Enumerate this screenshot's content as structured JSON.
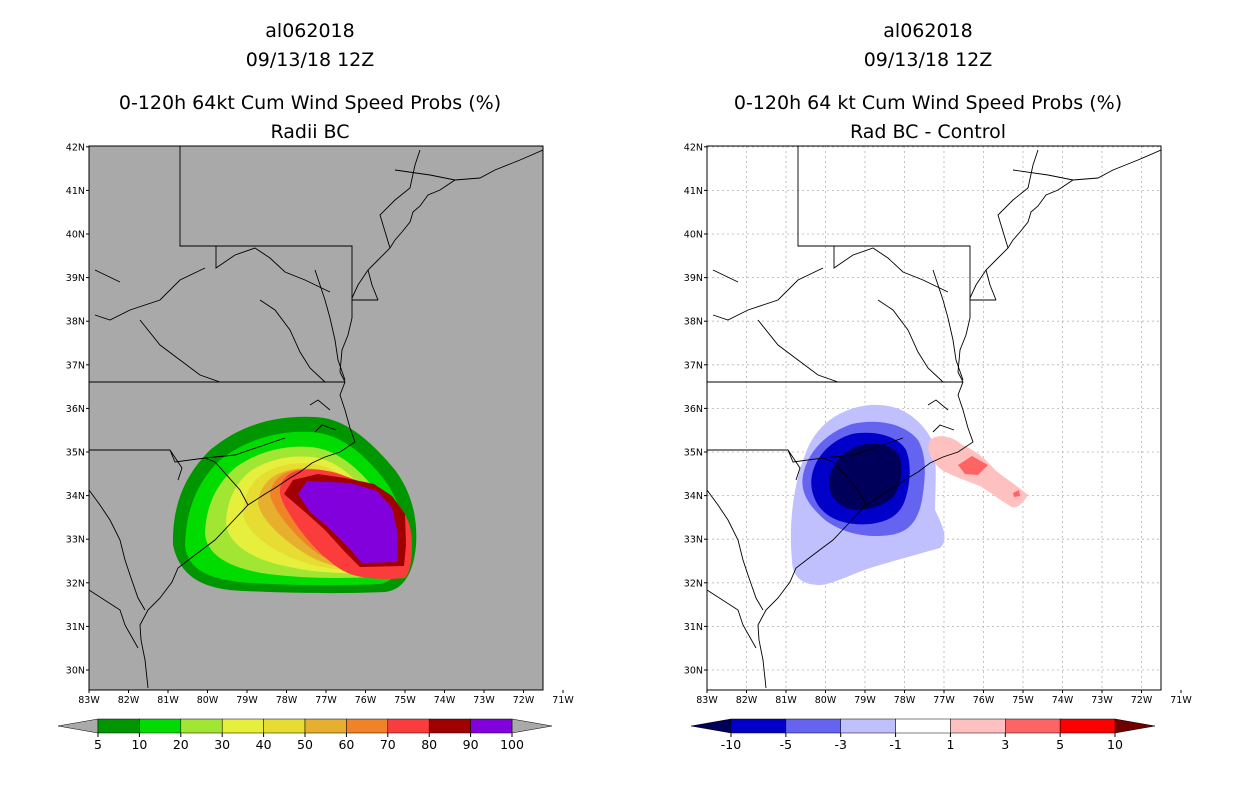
{
  "panels": [
    {
      "id": "left",
      "title1": "al062018",
      "title2": "09/13/18 12Z",
      "title3": "0-120h 64kt Cum Wind Speed Probs (%)",
      "title4": "Radii BC",
      "background": "#a9a9a9"
    },
    {
      "id": "right",
      "title1": "al062018",
      "title2": "09/13/18 12Z",
      "title3": "0-120h 64 kt Cum Wind Speed Probs (%)",
      "title4": "Rad BC - Control",
      "background": "#ffffff"
    }
  ],
  "axes": {
    "lat_labels": [
      "30N",
      "31N",
      "32N",
      "33N",
      "34N",
      "35N",
      "36N",
      "37N",
      "38N",
      "39N",
      "40N",
      "41N",
      "42N"
    ],
    "lon_labels": [
      "83W",
      "82W",
      "81W",
      "80W",
      "79W",
      "78W",
      "77W",
      "76W",
      "75W",
      "74W",
      "73W",
      "72W",
      "71W"
    ]
  },
  "colorbars": [
    {
      "id": "left",
      "colors": [
        "#009600",
        "#00dc00",
        "#a0e632",
        "#e6f03c",
        "#e6dc32",
        "#e6af2d",
        "#f08228",
        "#fa3c3c",
        "#a00000",
        "#8200dc"
      ],
      "labels": [
        "5",
        "10",
        "20",
        "30",
        "40",
        "50",
        "60",
        "70",
        "80",
        "90",
        "100"
      ],
      "under_color": "#a9a9a9",
      "over_color": "#a9a9a9"
    },
    {
      "id": "right",
      "colors": [
        "#0000c8",
        "#6464f0",
        "#c0c0ff",
        "#ffffff",
        "#ffc0c0",
        "#ff6464",
        "#ff0000"
      ],
      "labels": [
        "-10",
        "-5",
        "-3",
        "-1",
        "1",
        "3",
        "5",
        "10"
      ],
      "under_color": "#00005a",
      "over_color": "#6e0000"
    }
  ],
  "chart_data": [
    {
      "type": "heatmap",
      "title": "al062018 09/13/18 12Z 0-120h 64kt Cum Wind Speed Probs (%) Radii BC",
      "xlabel": "",
      "ylabel": "",
      "xlim": [
        -83,
        -71
      ],
      "ylim": [
        29.5,
        42
      ],
      "levels": [
        5,
        10,
        20,
        30,
        40,
        50,
        60,
        70,
        80,
        90,
        100
      ],
      "peak_value": 100,
      "peak_region": "offshore southeast of Cape Fear, about 75-76W, 33-34N"
    },
    {
      "type": "heatmap",
      "title": "al062018 09/13/18 12Z 0-120h 64 kt Cum Wind Speed Probs (%) Rad BC - Control",
      "xlabel": "",
      "ylabel": "",
      "xlim": [
        -83,
        -71
      ],
      "ylim": [
        29.5,
        42
      ],
      "levels": [
        -10,
        -5,
        -3,
        -1,
        1,
        3,
        5,
        10
      ],
      "negative_max_region": "inland South Carolina near 79W, 34N (below -10)",
      "positive_max_region": "offshore near 76W, 34.5N (3 to 5)"
    }
  ]
}
